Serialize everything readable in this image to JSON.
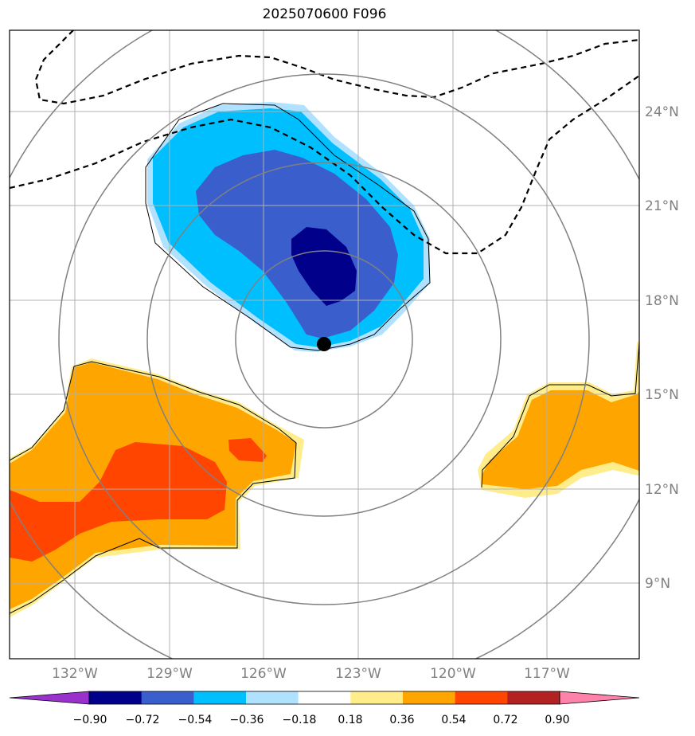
{
  "title": "2025070600 F096",
  "map": {
    "lon_range": [
      -134.0,
      -114.0
    ],
    "lat_range": [
      7.0,
      27.0
    ],
    "lon_ticks": [
      {
        "value": -132,
        "label": "132°W"
      },
      {
        "value": -129,
        "label": "129°W"
      },
      {
        "value": -126,
        "label": "126°W"
      },
      {
        "value": -123,
        "label": "123°W"
      },
      {
        "value": -120,
        "label": "120°W"
      },
      {
        "value": -117,
        "label": "117°W"
      }
    ],
    "lat_ticks": [
      {
        "value": 24,
        "label": "24°N"
      },
      {
        "value": 21,
        "label": "21°N"
      },
      {
        "value": 18,
        "label": "18°N"
      },
      {
        "value": 15,
        "label": "15°N"
      },
      {
        "value": 12,
        "label": "12°N"
      },
      {
        "value": 9,
        "label": "9°N"
      }
    ],
    "storm_center": {
      "lon": -124.0,
      "lat": 16.6
    },
    "range_rings_deg": [
      2.8,
      5.6,
      8.4,
      11.2
    ],
    "grid": true
  },
  "colorbar": {
    "levels": [
      "−0.90",
      "−0.72",
      "−0.54",
      "−0.36",
      "−0.18",
      "0.18",
      "0.36",
      "0.54",
      "0.72",
      "0.90"
    ],
    "colors": [
      "#9932cc",
      "#00008b",
      "#3a5fcd",
      "#00bfff",
      "#b0e2ff",
      "#ffffff",
      "#ffec8b",
      "#ffa500",
      "#ff4500",
      "#b22222",
      "#ff82ab"
    ],
    "extend": "both"
  },
  "colors": {
    "grid": "#b0b0b0",
    "rings": "#808080",
    "contour": "#000000"
  }
}
